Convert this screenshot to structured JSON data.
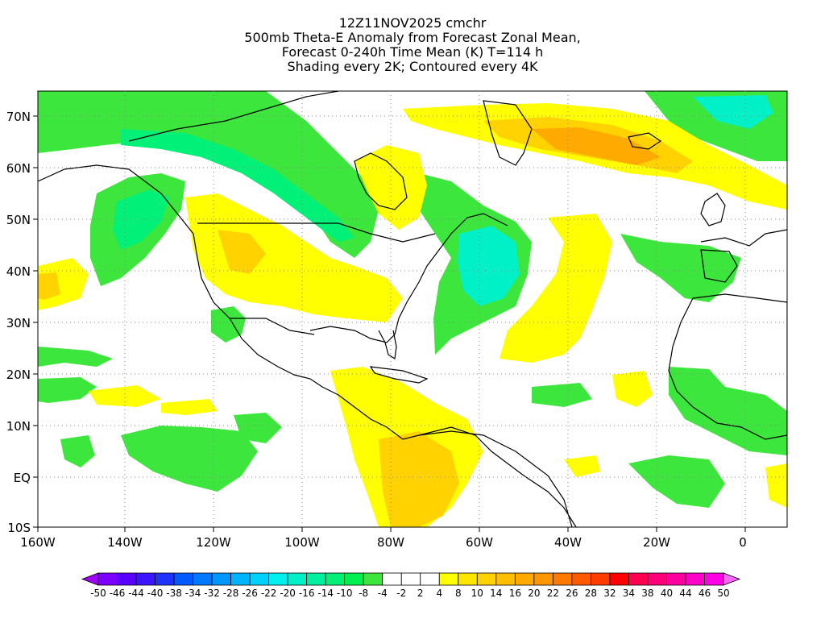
{
  "title": {
    "line1": "12Z11NOV2025 cmchr",
    "line2": "500mb Theta-E Anomaly from Forecast Zonal Mean,",
    "line3": "Forecast 0-240h Time Mean (K) T=114 h",
    "line4": "Shading every 2K; Contoured every 4K"
  },
  "axes": {
    "lat_labels": [
      "70N",
      "60N",
      "50N",
      "40N",
      "30N",
      "20N",
      "10N",
      "EQ",
      "10S"
    ],
    "lon_labels": [
      "160W",
      "140W",
      "120W",
      "100W",
      "80W",
      "60W",
      "40W",
      "20W",
      "0"
    ]
  },
  "colorbar": {
    "labels": [
      "-50",
      "-46",
      "-44",
      "-40",
      "-38",
      "-34",
      "-32",
      "-28",
      "-26",
      "-22",
      "-20",
      "-16",
      "-14",
      "-10",
      "-8",
      "-4",
      "-2",
      "2",
      "4",
      "8",
      "10",
      "14",
      "16",
      "20",
      "22",
      "26",
      "28",
      "32",
      "34",
      "38",
      "40",
      "44",
      "46",
      "50"
    ],
    "colors": [
      "#a000ff",
      "#7d00ff",
      "#5a00ff",
      "#3c14ff",
      "#1e32ff",
      "#005aff",
      "#0078ff",
      "#0096ff",
      "#00b4ff",
      "#00d2ff",
      "#00f0f0",
      "#00f0c8",
      "#00f0a0",
      "#00f078",
      "#00f050",
      "#3ce63c",
      "#ffffff",
      "#ffffff",
      "#ffffff",
      "#ffff00",
      "#ffe600",
      "#ffd200",
      "#ffbe00",
      "#ffaa00",
      "#ff9600",
      "#ff7800",
      "#ff5a00",
      "#ff3c00",
      "#ff0000",
      "#ff0050",
      "#ff0078",
      "#ff00a0",
      "#ff00c8",
      "#ff00e6",
      "#ff64ff"
    ]
  },
  "map_colors": {
    "green": "#3ce63c",
    "light_green": "#00f078",
    "cyan": "#00f0c8",
    "yellow": "#ffff00",
    "gold": "#ffd200",
    "orange": "#ffaa00"
  }
}
